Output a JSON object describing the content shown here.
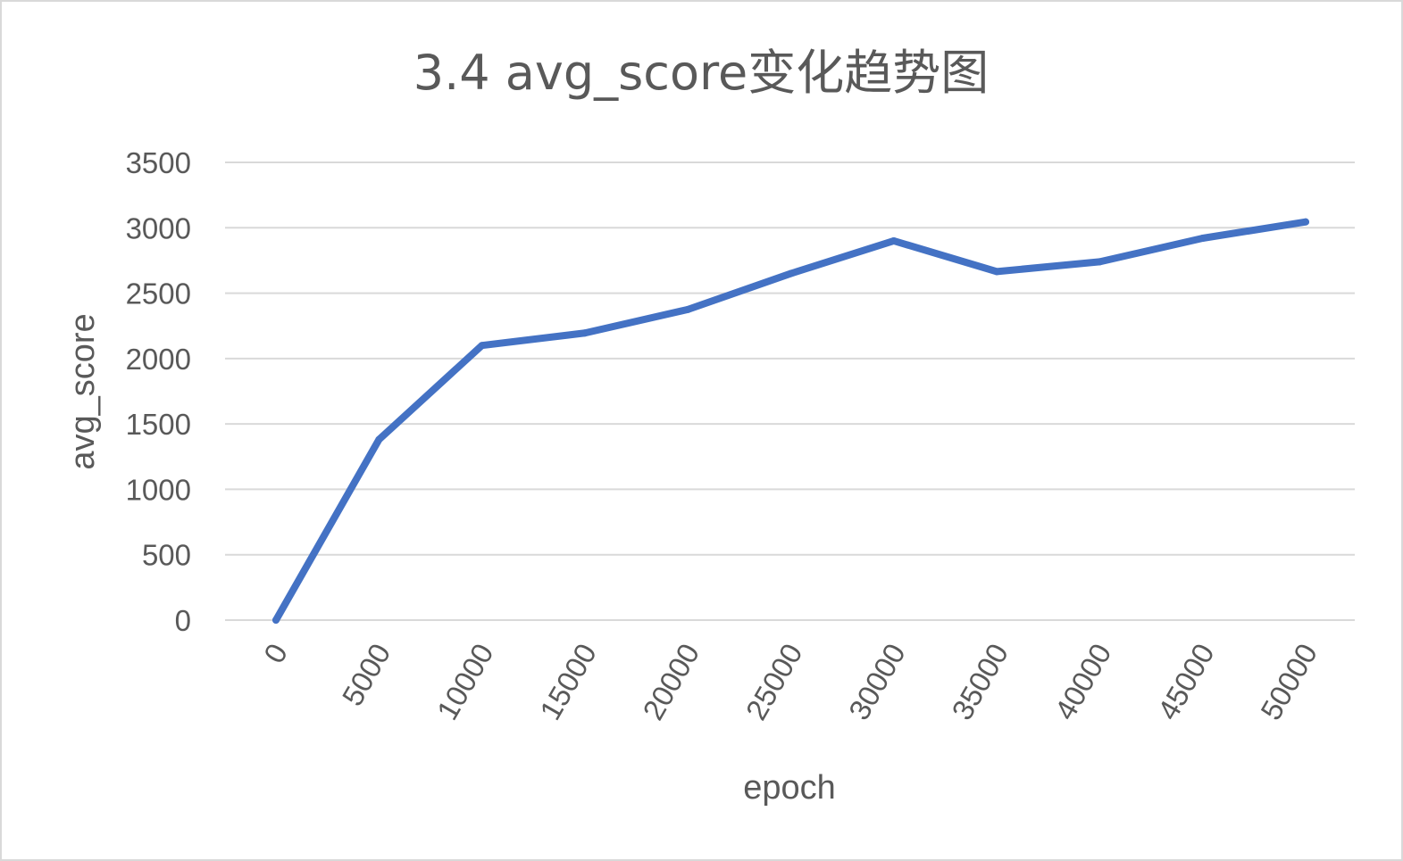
{
  "chart_data": {
    "type": "line",
    "title": "3.4 avg_score变化趋势图",
    "xlabel": "epoch",
    "ylabel": "avg_score",
    "categories": [
      "0",
      "5000",
      "10000",
      "15000",
      "20000",
      "25000",
      "30000",
      "35000",
      "40000",
      "45000",
      "50000"
    ],
    "series": [
      {
        "values": [
          0,
          1380,
          2100,
          2195,
          2375,
          2650,
          2900,
          2665,
          2740,
          2920,
          3045
        ]
      }
    ],
    "ylim": [
      0,
      3500
    ],
    "yticks": [
      0,
      500,
      1000,
      1500,
      2000,
      2500,
      3000,
      3500
    ],
    "ytick_labels": [
      "0",
      "500",
      "1000",
      "1500",
      "2000",
      "2500",
      "3000",
      "3500"
    ],
    "grid": true,
    "legend": "none",
    "colors": {
      "series": "#4472c4",
      "grid": "#d9d9d9",
      "text": "#595959",
      "border": "#d9d9d9"
    }
  }
}
